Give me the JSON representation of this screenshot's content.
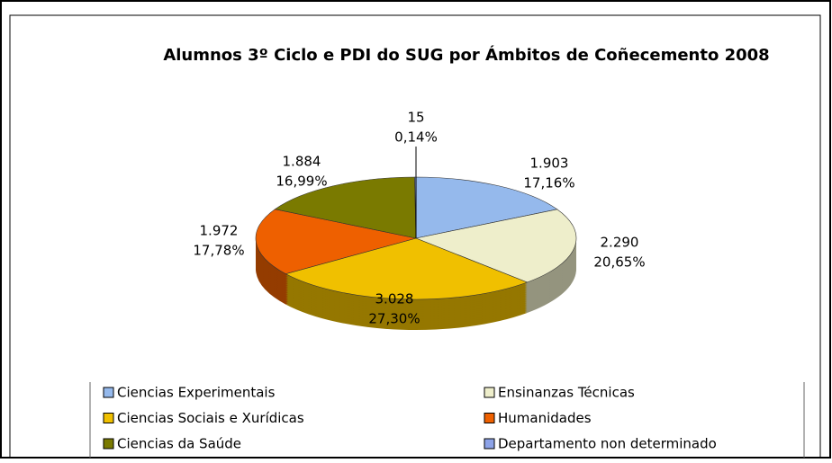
{
  "chart_data": {
    "type": "pie",
    "title": "Alumnos 3º Ciclo e PDI do SUG por Ámbitos de Coñecemento 2008",
    "categories": [
      "Ciencias Experimentais",
      "Ensinanzas Técnicas",
      "Ciencias Sociais e Xurídicas",
      "Humanidades",
      "Ciencias da Saúde",
      "Departamento non determinado"
    ],
    "values": [
      1903,
      2290,
      3028,
      1972,
      1884,
      15
    ],
    "value_labels": [
      "1.903",
      "2.290",
      "3.028",
      "1.972",
      "1.884",
      "15"
    ],
    "percentages": [
      17.16,
      20.65,
      27.3,
      17.78,
      16.99,
      0.14
    ],
    "percentage_labels": [
      "17,16%",
      "20,65%",
      "27,30%",
      "17,78%",
      "16,99%",
      "0,14%"
    ],
    "colors": [
      "#95b9ec",
      "#eeeecb",
      "#f0c000",
      "#ee6000",
      "#7a7a00",
      "#8da3e8"
    ],
    "legend": "bottom"
  }
}
